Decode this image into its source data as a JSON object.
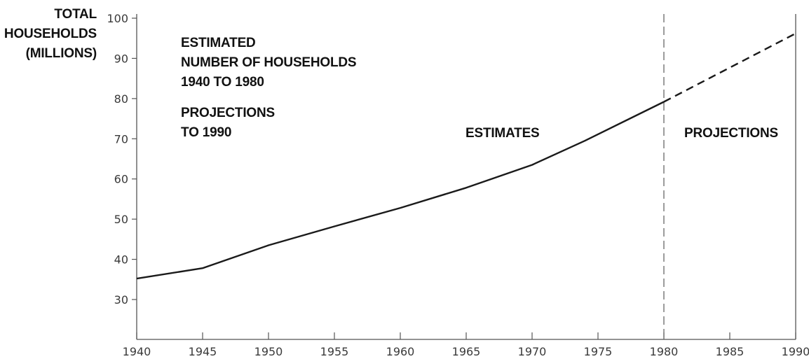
{
  "chart_data": {
    "type": "line",
    "ylabel_lines": [
      "TOTAL",
      "HOUSEHOLDS",
      "(MILLIONS)"
    ],
    "title_lines": [
      "ESTIMATED",
      "NUMBER OF HOUSEHOLDS",
      "1940 TO 1980"
    ],
    "subtitle_lines": [
      "PROJECTIONS",
      "TO 1990"
    ],
    "xlim": [
      1940,
      1990
    ],
    "ylim": [
      25,
      100
    ],
    "x_ticks": [
      1940,
      1945,
      1950,
      1955,
      1960,
      1965,
      1970,
      1975,
      1980,
      1985,
      1990
    ],
    "x_tick_labels": [
      "1940",
      "1945",
      "1950",
      "1955",
      "1960",
      "1965",
      "1970",
      "1975",
      "1980",
      "1985",
      "1990"
    ],
    "y_ticks": [
      30,
      40,
      50,
      60,
      70,
      80,
      90,
      100
    ],
    "y_tick_labels": [
      "30",
      "40",
      "50",
      "60",
      "70",
      "80",
      "90",
      "100"
    ],
    "divider_x": 1980,
    "region_labels": {
      "estimates": "ESTIMATES",
      "projections": "PROJECTIONS"
    },
    "series": [
      {
        "style": "solid",
        "x": [
          1940,
          1945,
          1950,
          1955,
          1960,
          1965,
          1970,
          1974,
          1980
        ],
        "y": [
          35.2,
          37.8,
          43.5,
          48.2,
          52.8,
          57.8,
          63.5,
          69.5,
          79.2
        ]
      },
      {
        "style": "dashed",
        "x": [
          1980,
          1990
        ],
        "y": [
          79.2,
          96.2
        ]
      }
    ],
    "grid": false,
    "legend": "none"
  }
}
